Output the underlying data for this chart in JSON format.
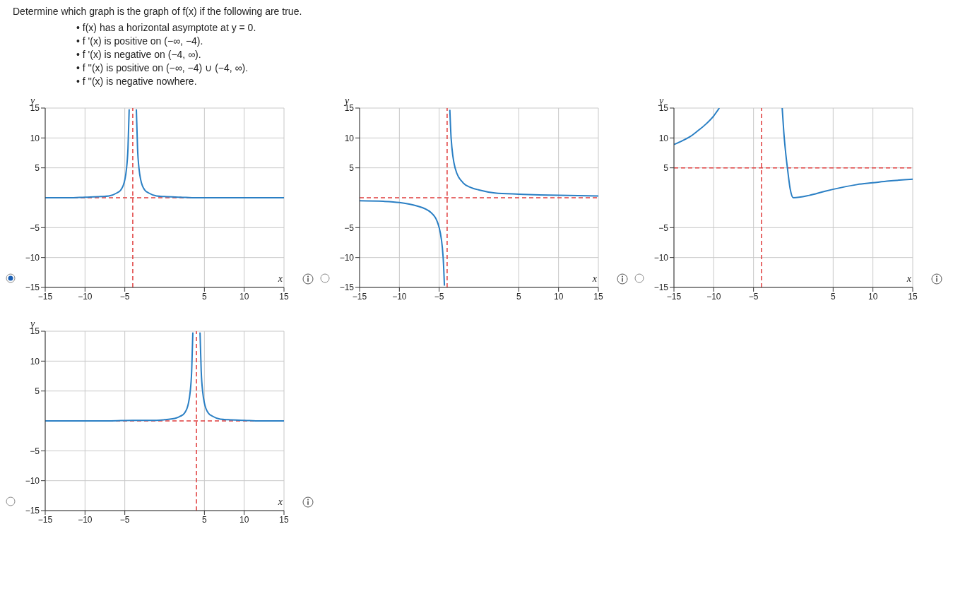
{
  "chart_data": [
    {
      "type": "line",
      "title": "Determine which graph is the graph of f(x) if the following are true.",
      "annotations": [
        "• f(x) has a horizontal asymptote at y = 0.",
        "• f '(x) is positive on (−∞, −4).",
        "• f '(x) is negative on (−4, ∞).",
        "• f ''(x) is positive on (−∞, −4) ∪ (−4, ∞).",
        "• f ''(x) is negative nowhere."
      ],
      "xlabel": "x",
      "ylabel": "y",
      "xlim": [
        -15,
        15
      ],
      "ylim": [
        -15,
        15
      ],
      "xticks": [
        -15,
        -10,
        -5,
        5,
        10,
        15
      ],
      "yticks": [
        -15,
        -10,
        -5,
        5,
        10,
        15
      ],
      "grid": true,
      "marker": "none",
      "series": [
        {
          "color": "#2a7fc4",
          "x": [
            -15,
            -12,
            -10,
            -8,
            -7,
            -6,
            -5.5,
            -5,
            -4.8,
            -4.6,
            -4.45,
            -4,
            -3.55,
            -3.4,
            -3.2,
            -3,
            -2.5,
            -2,
            -1,
            0,
            2,
            4,
            7,
            11,
            15
          ],
          "values": [
            0,
            0,
            0.1,
            0.2,
            0.3,
            0.8,
            1.3,
            3,
            4.7,
            8.3,
            14.8,
            null,
            14.8,
            8.3,
            4.7,
            3,
            1.3,
            0.8,
            0.3,
            0.2,
            0.1,
            0,
            0,
            0,
            0
          ]
        }
      ],
      "ref_lines": [
        {
          "axis": "x",
          "value": -4,
          "color": "#e03c3c",
          "line_style": "dashed"
        },
        {
          "axis": "y",
          "value": 0,
          "color": "#e03c3c",
          "line_style": "dashed"
        }
      ]
    },
    {
      "type": "line",
      "xlabel": "x",
      "ylabel": "y",
      "xlim": [
        -15,
        15
      ],
      "ylim": [
        -15,
        15
      ],
      "xticks": [
        -15,
        -10,
        -5,
        5,
        10,
        15
      ],
      "yticks": [
        -15,
        -10,
        -5,
        5,
        10,
        15
      ],
      "grid": true,
      "marker": "none",
      "series": [
        {
          "color": "#2a7fc4",
          "x": [
            -15,
            -12,
            -10,
            -8,
            -6,
            -5,
            -4.5,
            -4.34,
            -4,
            -3.66,
            -3.5,
            -3,
            -2,
            -1,
            0,
            2,
            5,
            10,
            15
          ],
          "values": [
            -0.5,
            -0.6,
            -0.8,
            -1.3,
            -2.5,
            -5,
            -10,
            -14.7,
            null,
            14.7,
            10,
            5,
            2.5,
            1.7,
            1.3,
            0.8,
            0.6,
            0.4,
            0.3
          ]
        }
      ],
      "ref_lines": [
        {
          "axis": "x",
          "value": -4,
          "color": "#e03c3c",
          "line_style": "dashed"
        },
        {
          "axis": "y",
          "value": 0,
          "color": "#e03c3c",
          "line_style": "dashed"
        }
      ]
    },
    {
      "type": "line",
      "xlabel": "x",
      "ylabel": "y",
      "xlim": [
        -15,
        15
      ],
      "ylim": [
        -15,
        15
      ],
      "xticks": [
        -15,
        -10,
        -5,
        5,
        10,
        15
      ],
      "yticks": [
        -15,
        -10,
        -5,
        5,
        10,
        15
      ],
      "grid": true,
      "marker": "none",
      "series": [
        {
          "color": "#2a7fc4",
          "x": [
            -15,
            -14,
            -13,
            -12,
            -11,
            -10,
            -9.3,
            -4,
            -1.4,
            -1.2,
            -1,
            -0.7,
            -0.4,
            0,
            2,
            4,
            6,
            8,
            10,
            12,
            15
          ],
          "values": [
            8.9,
            9.5,
            10.2,
            11.2,
            12.3,
            13.7,
            15,
            null,
            15,
            11,
            8,
            4.5,
            1.5,
            0,
            0.4,
            1.1,
            1.7,
            2.2,
            2.5,
            2.8,
            3.1
          ]
        }
      ],
      "ref_lines": [
        {
          "axis": "x",
          "value": -4,
          "color": "#e03c3c",
          "line_style": "dashed"
        },
        {
          "axis": "y",
          "value": 5,
          "color": "#e03c3c",
          "line_style": "dashed"
        }
      ]
    },
    {
      "type": "line",
      "xlabel": "x",
      "ylabel": "y",
      "xlim": [
        -15,
        15
      ],
      "ylim": [
        -15,
        15
      ],
      "xticks": [
        -15,
        -10,
        -5,
        5,
        10,
        15
      ],
      "yticks": [
        -15,
        -10,
        -5,
        5,
        10,
        15
      ],
      "grid": true,
      "marker": "none",
      "series": [
        {
          "color": "#2a7fc4",
          "x": [
            -15,
            -11,
            -7,
            -4,
            -2,
            -1,
            0,
            1.5,
            2,
            2.5,
            3,
            3.2,
            3.4,
            3.55,
            4,
            4.45,
            4.6,
            4.8,
            5,
            5.5,
            6,
            7,
            8,
            10,
            12,
            15
          ],
          "values": [
            0,
            0,
            0,
            0.1,
            0.1,
            0.1,
            0.2,
            0.5,
            0.8,
            1.3,
            3,
            4.7,
            8.3,
            14.8,
            null,
            14.8,
            8.3,
            4.7,
            3,
            1.3,
            0.8,
            0.3,
            0.2,
            0.1,
            0,
            0
          ]
        }
      ],
      "ref_lines": [
        {
          "axis": "x",
          "value": 4,
          "color": "#e03c3c",
          "line_style": "dashed"
        },
        {
          "axis": "y",
          "value": 0,
          "color": "#e03c3c",
          "line_style": "dashed"
        }
      ]
    }
  ]
}
